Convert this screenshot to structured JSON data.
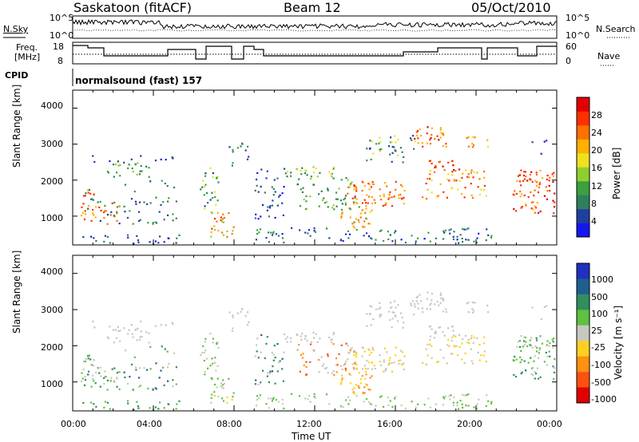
{
  "header": {
    "station": "Saskatoon (fitACF)",
    "beam": "Beam 12",
    "date": "05/Oct/2010"
  },
  "top_panels": {
    "nsky_label": "N.Sky",
    "nsearch_label": "N.Search",
    "noise_ticks": [
      "10^5",
      "10^0"
    ],
    "freq_label_line1": "Freq.",
    "freq_label_line2": "[MHz]",
    "freq_ticks": [
      "18",
      "8"
    ],
    "nave_label": "Nave",
    "nave_ticks": [
      "60",
      "0"
    ],
    "cpid_label": "CPID",
    "cpid_text": "normalsound (fast) 157"
  },
  "colors": {
    "power_scale": [
      "#1515f0",
      "#1f3f9f",
      "#2f7f5f",
      "#3aa040",
      "#8fcf30",
      "#f0e020",
      "#ffb000",
      "#ff7000",
      "#ff3000",
      "#e00000"
    ],
    "velocity_scale": [
      "#2030c0",
      "#1f5f8f",
      "#2f8f5f",
      "#60c040",
      "#c8c8c0",
      "#ffd020",
      "#ff9010",
      "#ff5010",
      "#e00000"
    ]
  },
  "chart_data": [
    {
      "type": "heatmap",
      "name": "power-panel",
      "ylabel": "Slant Range [km]",
      "yticks": [
        1000,
        2000,
        3000,
        4000
      ],
      "ylim": [
        200,
        4500
      ],
      "xlim": [
        0,
        24
      ],
      "colorbar_label": "Power [dB]",
      "colorbar_ticks": [
        4,
        8,
        12,
        16,
        20,
        24,
        28
      ],
      "colorbar_range": [
        0,
        30
      ]
    },
    {
      "type": "heatmap",
      "name": "velocity-panel",
      "ylabel": "Slant Range [km]",
      "yticks": [
        1000,
        2000,
        3000,
        4000
      ],
      "ylim": [
        200,
        4500
      ],
      "xlim": [
        0,
        24
      ],
      "xlabel": "Time UT",
      "xticks": [
        "00:00",
        "04:00",
        "08:00",
        "12:00",
        "16:00",
        "20:00",
        "00:00"
      ],
      "colorbar_label": "Velocity [m s⁻¹]",
      "colorbar_ticks": [
        "1000",
        "500",
        "100",
        "25",
        "-25",
        "-100",
        "-500",
        "-1000"
      ]
    }
  ]
}
